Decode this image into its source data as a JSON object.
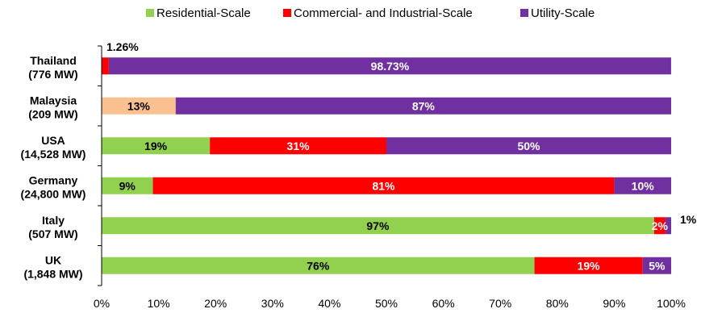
{
  "chart_data": {
    "type": "bar",
    "orientation": "horizontal",
    "stacked": "percent",
    "categories": [
      "Thailand",
      "Malaysia",
      "USA",
      "Germany",
      "Italy",
      "UK"
    ],
    "category_capacity": [
      "(776 MW)",
      "(209 MW)",
      "(14,528 MW)",
      "(24,800 MW)",
      "(507 MW)",
      "(1,848 MW)"
    ],
    "series": [
      {
        "name": "Residential-Scale",
        "color": "#92d050",
        "values": [
          0,
          13,
          19,
          9,
          97,
          76
        ]
      },
      {
        "name": "Commercial- and Industrial-Scale",
        "color": "#ff0000",
        "values": [
          1.26,
          0,
          31,
          81,
          2,
          19
        ]
      },
      {
        "name": "Utility-Scale",
        "color": "#7030a0",
        "values": [
          98.73,
          87,
          50,
          10,
          1,
          5
        ]
      }
    ],
    "special_colors": {
      "Malaysia.Residential-Scale": "#fac090"
    },
    "data_labels": [
      {
        "category": "Thailand",
        "series": "Commercial- and Industrial-Scale",
        "text": "1.26%",
        "placement": "above"
      },
      {
        "category": "Thailand",
        "series": "Utility-Scale",
        "text": "98.73%"
      },
      {
        "category": "Malaysia",
        "series": "Residential-Scale",
        "text": "13%"
      },
      {
        "category": "Malaysia",
        "series": "Utility-Scale",
        "text": "87%"
      },
      {
        "category": "USA",
        "series": "Residential-Scale",
        "text": "19%"
      },
      {
        "category": "USA",
        "series": "Commercial- and Industrial-Scale",
        "text": "31%"
      },
      {
        "category": "USA",
        "series": "Utility-Scale",
        "text": "50%"
      },
      {
        "category": "Germany",
        "series": "Residential-Scale",
        "text": "9%"
      },
      {
        "category": "Germany",
        "series": "Commercial- and Industrial-Scale",
        "text": "81%"
      },
      {
        "category": "Germany",
        "series": "Utility-Scale",
        "text": "10%"
      },
      {
        "category": "Italy",
        "series": "Residential-Scale",
        "text": "97%"
      },
      {
        "category": "Italy",
        "series": "Commercial- and Industrial-Scale",
        "text": "2%"
      },
      {
        "category": "Italy",
        "series": "Utility-Scale",
        "text": "1%",
        "placement": "outside-right"
      },
      {
        "category": "UK",
        "series": "Residential-Scale",
        "text": "76%"
      },
      {
        "category": "UK",
        "series": "Commercial- and Industrial-Scale",
        "text": "19%"
      },
      {
        "category": "UK",
        "series": "Utility-Scale",
        "text": "5%"
      }
    ],
    "xlim": [
      0,
      100
    ],
    "x_ticks": [
      "0%",
      "10%",
      "20%",
      "30%",
      "40%",
      "50%",
      "60%",
      "70%",
      "80%",
      "90%",
      "100%"
    ],
    "legend_position": "top",
    "grid": false,
    "title": "",
    "xlabel": "",
    "ylabel": ""
  }
}
